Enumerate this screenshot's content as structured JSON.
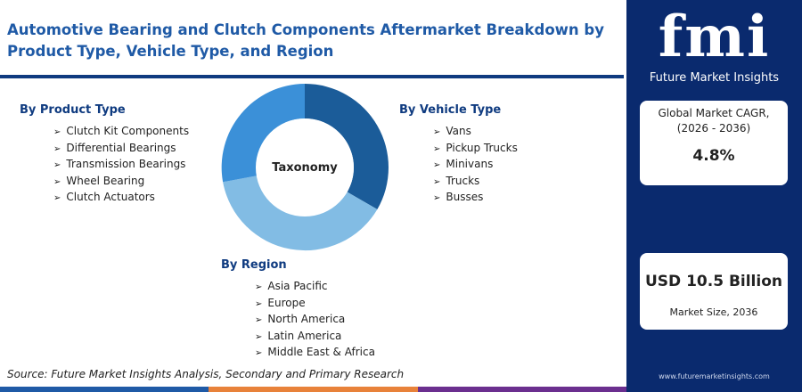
{
  "header": {
    "title": "Automotive Bearing and Clutch Components Aftermarket Breakdown by Product Type, Vehicle Type, and Region"
  },
  "diagram": {
    "center": "Taxonomy",
    "groups": [
      {
        "title": "By Product Type",
        "items": [
          "Clutch Kit Components",
          "Differential Bearings",
          "Transmission Bearings",
          "Wheel Bearing",
          "Clutch Actuators"
        ]
      },
      {
        "title": "By Vehicle Type",
        "items": [
          "Vans",
          "Pickup Trucks",
          "Minivans",
          "Trucks",
          "Busses"
        ]
      },
      {
        "title": "By Region",
        "items": [
          "Asia Pacific",
          "Europe",
          "North America",
          "Latin America",
          "Middle East & Africa"
        ]
      }
    ]
  },
  "footer": {
    "source": "Source: Future Market Insights Analysis, Secondary and Primary Research"
  },
  "sidebar": {
    "logo": "fmi",
    "brand": "Future Market Insights",
    "cagr": {
      "label": [
        "Global Market CAGR,",
        "(2026 - 2036)"
      ],
      "value": "4.8%"
    },
    "size": {
      "value": "USD 10.5 Billion",
      "label": "Market Size, 2036"
    },
    "url": "www.futuremarketinsights.com"
  }
}
